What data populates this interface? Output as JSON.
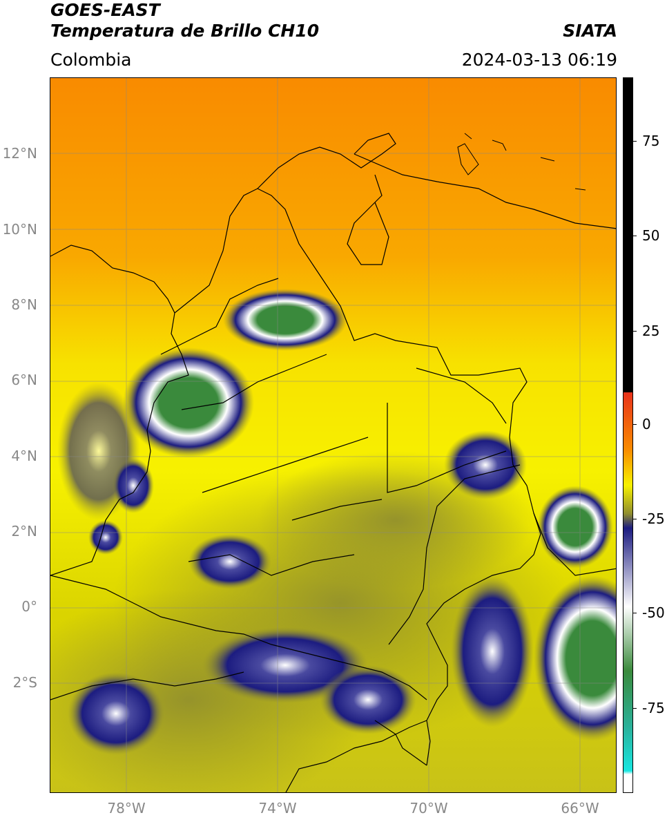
{
  "header": {
    "title_line1": "GOES-EAST",
    "title_line2": "Temperatura de Brillo CH10",
    "region": "Colombia",
    "source": "SIATA",
    "timestamp": "2024-03-13 06:19"
  },
  "map": {
    "lat_labels": [
      "12°N",
      "10°N",
      "8°N",
      "6°N",
      "4°N",
      "2°N",
      "0°",
      "2°S"
    ],
    "lon_labels": [
      "78°W",
      "74°W",
      "70°W",
      "66°W"
    ]
  },
  "colorbar": {
    "labels": [
      "75",
      "50",
      "25",
      "0",
      "-25",
      "-50",
      "-75"
    ],
    "colors": {
      "black": "#000000",
      "red": "#e8321c",
      "orange": "#f98b00",
      "yellow": "#f7f100",
      "olive": "#8f8d2e",
      "navy": "#1c1c80",
      "white": "#ffffff",
      "green": "#3a8a3c",
      "teal": "#2ab29c",
      "cyan": "#18e6e0"
    }
  }
}
